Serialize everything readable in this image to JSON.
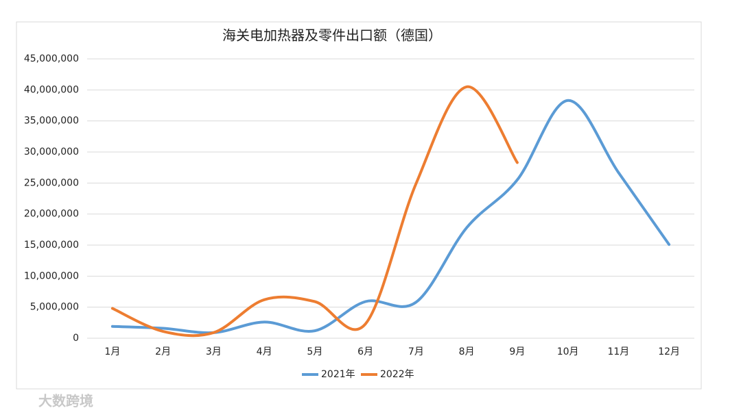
{
  "chart_data": {
    "type": "line",
    "title": "海关电加热器及零件出口额（德国）",
    "categories": [
      "1月",
      "2月",
      "3月",
      "4月",
      "5月",
      "6月",
      "7月",
      "8月",
      "9月",
      "10月",
      "11月",
      "12月"
    ],
    "series": [
      {
        "name": "2021年",
        "color": "#5b9bd5",
        "values": [
          1900000,
          1600000,
          900000,
          2600000,
          1200000,
          5900000,
          5800000,
          17800000,
          25500000,
          38300000,
          26700000,
          15100000
        ]
      },
      {
        "name": "2022年",
        "color": "#ed7d31",
        "values": [
          4800000,
          1100000,
          900000,
          6200000,
          5900000,
          2300000,
          24900000,
          40500000,
          28300000,
          null,
          null,
          null
        ]
      }
    ],
    "ylim": [
      0,
      45000000
    ],
    "yticks": [
      0,
      {
        "value": 5000000,
        "label": "5,000,000"
      },
      {
        "value": 10000000,
        "label": "10,000,000"
      },
      {
        "value": 15000000,
        "label": "15,000,000"
      },
      {
        "value": 20000000,
        "label": "20,000,000"
      },
      {
        "value": 25000000,
        "label": "25,000,000"
      },
      {
        "value": 30000000,
        "label": "30,000,000"
      },
      {
        "value": 35000000,
        "label": "35,000,000"
      },
      {
        "value": 40000000,
        "label": "40,000,000"
      },
      {
        "value": 45000000,
        "label": "45,000,000"
      }
    ],
    "grid": true,
    "smooth": true,
    "legend": "bottom",
    "watermark": "大数跨境"
  }
}
